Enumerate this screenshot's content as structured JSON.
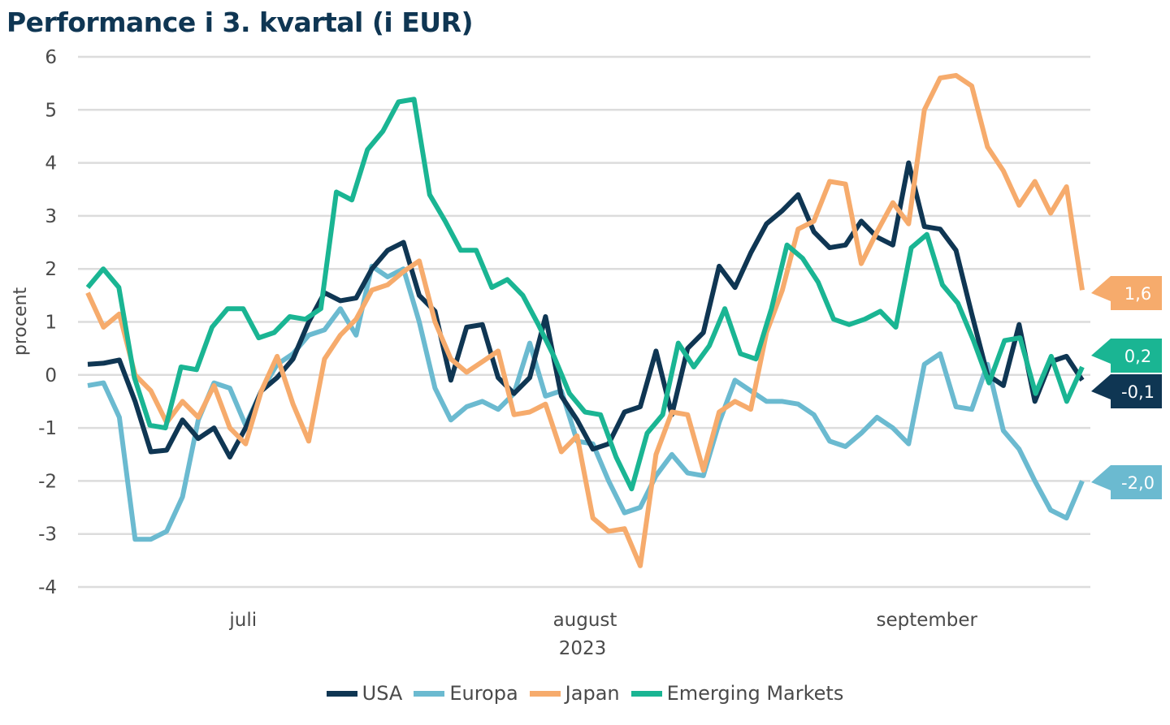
{
  "chart_data": {
    "type": "line",
    "title": "Performance i 3. kvartal (i EUR)",
    "xlabel": "2023",
    "ylabel": "procent",
    "ylim": [
      -4,
      6
    ],
    "yticks": [
      "6",
      "5",
      "4",
      "3",
      "2",
      "1",
      "0",
      "-1",
      "-2",
      "-3",
      "-4"
    ],
    "ytick_values": [
      6,
      5,
      4,
      3,
      2,
      1,
      0,
      -1,
      -2,
      -3,
      -4
    ],
    "xticks": [
      {
        "label": "juli",
        "index": 10
      },
      {
        "label": "august",
        "index": 32
      },
      {
        "label": "september",
        "index": 54
      }
    ],
    "year_label": "2023",
    "grid": true,
    "legend_position": "bottom",
    "series": [
      {
        "name": "USA",
        "color": "#0f3653",
        "end_label": "-0,1",
        "values": [
          0.2,
          0.22,
          0.28,
          -0.5,
          -1.45,
          -1.42,
          -0.85,
          -1.2,
          -1.0,
          -1.55,
          -1.0,
          -0.3,
          -0.05,
          0.3,
          1.0,
          1.55,
          1.4,
          1.45,
          2.0,
          2.35,
          2.5,
          1.5,
          1.2,
          -0.1,
          0.9,
          0.95,
          -0.05,
          -0.35,
          -0.05,
          1.1,
          -0.4,
          -0.85,
          -1.4,
          -1.3,
          -0.7,
          -0.6,
          0.45,
          -0.75,
          0.5,
          0.8,
          2.05,
          1.65,
          2.3,
          2.85,
          3.1,
          3.4,
          2.7,
          2.4,
          2.45,
          2.9,
          2.6,
          2.45,
          4.0,
          2.8,
          2.75,
          2.35,
          1.15,
          0.0,
          -0.2,
          0.95,
          -0.5,
          0.25,
          0.35,
          -0.1
        ]
      },
      {
        "name": "Europa",
        "color": "#6bbad0",
        "end_label": "-2,0",
        "values": [
          -0.2,
          -0.15,
          -0.8,
          -3.1,
          -3.1,
          -2.95,
          -2.3,
          -0.85,
          -0.15,
          -0.25,
          -0.95,
          -0.3,
          0.2,
          0.4,
          0.75,
          0.85,
          1.25,
          0.75,
          2.05,
          1.85,
          2.0,
          1.0,
          -0.25,
          -0.85,
          -0.6,
          -0.5,
          -0.65,
          -0.35,
          0.6,
          -0.4,
          -0.3,
          -1.25,
          -1.3,
          -2.0,
          -2.6,
          -2.5,
          -1.9,
          -1.5,
          -1.85,
          -1.9,
          -0.9,
          -0.1,
          -0.3,
          -0.5,
          -0.5,
          -0.55,
          -0.75,
          -1.25,
          -1.35,
          -1.1,
          -0.8,
          -1.0,
          -1.3,
          0.2,
          0.4,
          -0.6,
          -0.65,
          0.2,
          -1.05,
          -1.4,
          -2.0,
          -2.55,
          -2.7,
          -2.0
        ]
      },
      {
        "name": "Japan",
        "color": "#f6ab6c",
        "end_label": "1,6",
        "values": [
          1.55,
          0.9,
          1.15,
          0.0,
          -0.3,
          -0.9,
          -0.5,
          -0.8,
          -0.2,
          -1.0,
          -1.3,
          -0.3,
          0.35,
          -0.55,
          -1.25,
          0.3,
          0.75,
          1.05,
          1.6,
          1.7,
          1.95,
          2.15,
          1.0,
          0.3,
          0.05,
          0.25,
          0.45,
          -0.75,
          -0.7,
          -0.55,
          -1.45,
          -1.15,
          -2.7,
          -2.95,
          -2.9,
          -3.6,
          -1.5,
          -0.7,
          -0.75,
          -1.8,
          -0.7,
          -0.5,
          -0.65,
          0.8,
          1.6,
          2.75,
          2.9,
          3.65,
          3.6,
          2.1,
          2.7,
          3.25,
          2.85,
          5.0,
          5.6,
          5.65,
          5.45,
          4.3,
          3.85,
          3.2,
          3.65,
          3.05,
          3.55,
          1.6
        ]
      },
      {
        "name": "Emerging Markets",
        "color": "#1ab593",
        "end_label": "0,2",
        "values": [
          1.65,
          2.0,
          1.65,
          -0.05,
          -0.95,
          -1.0,
          0.15,
          0.1,
          0.9,
          1.25,
          1.25,
          0.7,
          0.8,
          1.1,
          1.05,
          1.25,
          3.45,
          3.3,
          4.25,
          4.6,
          5.15,
          5.2,
          3.4,
          2.9,
          2.35,
          2.35,
          1.65,
          1.8,
          1.5,
          0.95,
          0.35,
          -0.35,
          -0.7,
          -0.75,
          -1.55,
          -2.15,
          -1.1,
          -0.75,
          0.6,
          0.15,
          0.55,
          1.25,
          0.4,
          0.3,
          1.25,
          2.45,
          2.2,
          1.75,
          1.05,
          0.95,
          1.05,
          1.2,
          0.9,
          2.4,
          2.65,
          1.7,
          1.35,
          0.65,
          -0.15,
          0.65,
          0.7,
          -0.35,
          0.35,
          -0.5,
          0.15
        ]
      }
    ]
  }
}
